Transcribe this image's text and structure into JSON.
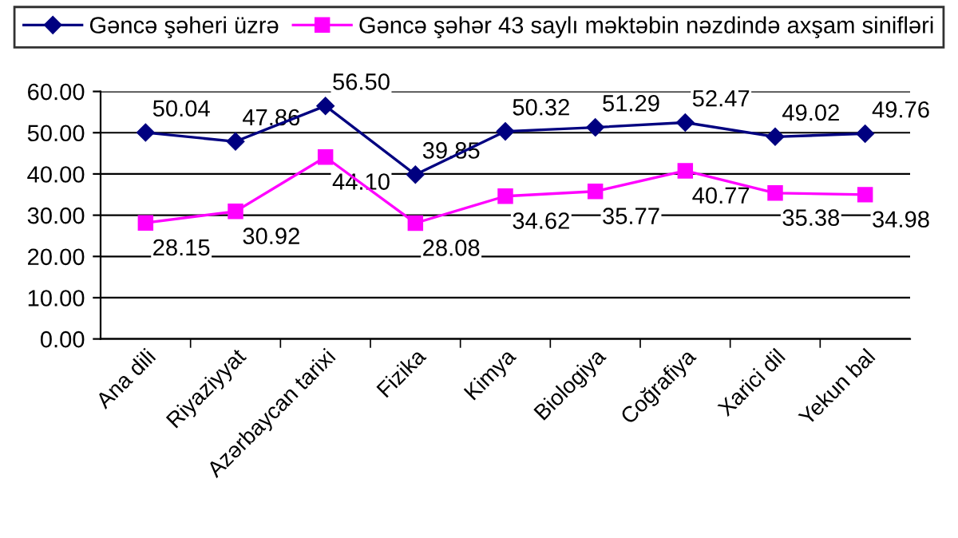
{
  "chart_data": {
    "type": "line",
    "categories": [
      "Ana dili",
      "Riyaziyyat",
      "Azərbaycan tarixi",
      "Fizika",
      "Kimya",
      "Biologiya",
      "Coğrafiya",
      "Xarici dil",
      "Yekun bal"
    ],
    "series": [
      {
        "name": "Gəncə şəheri üzrə",
        "color": "#000080",
        "marker": "diamond",
        "values": [
          50.04,
          47.86,
          56.5,
          39.85,
          50.32,
          51.29,
          52.47,
          49.02,
          49.76
        ],
        "value_labels": [
          "50.04",
          "47.86",
          "56.50",
          "39.85",
          "50.32",
          "51.29",
          "52.47",
          "49.02",
          "49.76"
        ]
      },
      {
        "name": "Gəncə şəhər 43 saylı məktəbin nəzdində axşam sinifləri",
        "color": "#ff00ff",
        "marker": "square",
        "values": [
          28.15,
          30.92,
          44.1,
          28.08,
          34.62,
          35.77,
          40.77,
          35.38,
          34.98
        ],
        "value_labels": [
          "28.15",
          "30.92",
          "44.10",
          "28.08",
          "34.62",
          "35.77",
          "40.77",
          "35.38",
          "34.98"
        ]
      }
    ],
    "ylim": [
      0,
      60
    ],
    "yticks": [
      {
        "value": 0,
        "label": "0.00"
      },
      {
        "value": 10,
        "label": "10.00"
      },
      {
        "value": 20,
        "label": "20.00"
      },
      {
        "value": 30,
        "label": "30.00"
      },
      {
        "value": 40,
        "label": "40.00"
      },
      {
        "value": 50,
        "label": "50.00"
      },
      {
        "value": 60,
        "label": "60.00"
      }
    ],
    "grid": "y",
    "legend": "top",
    "line_style": "solid"
  }
}
